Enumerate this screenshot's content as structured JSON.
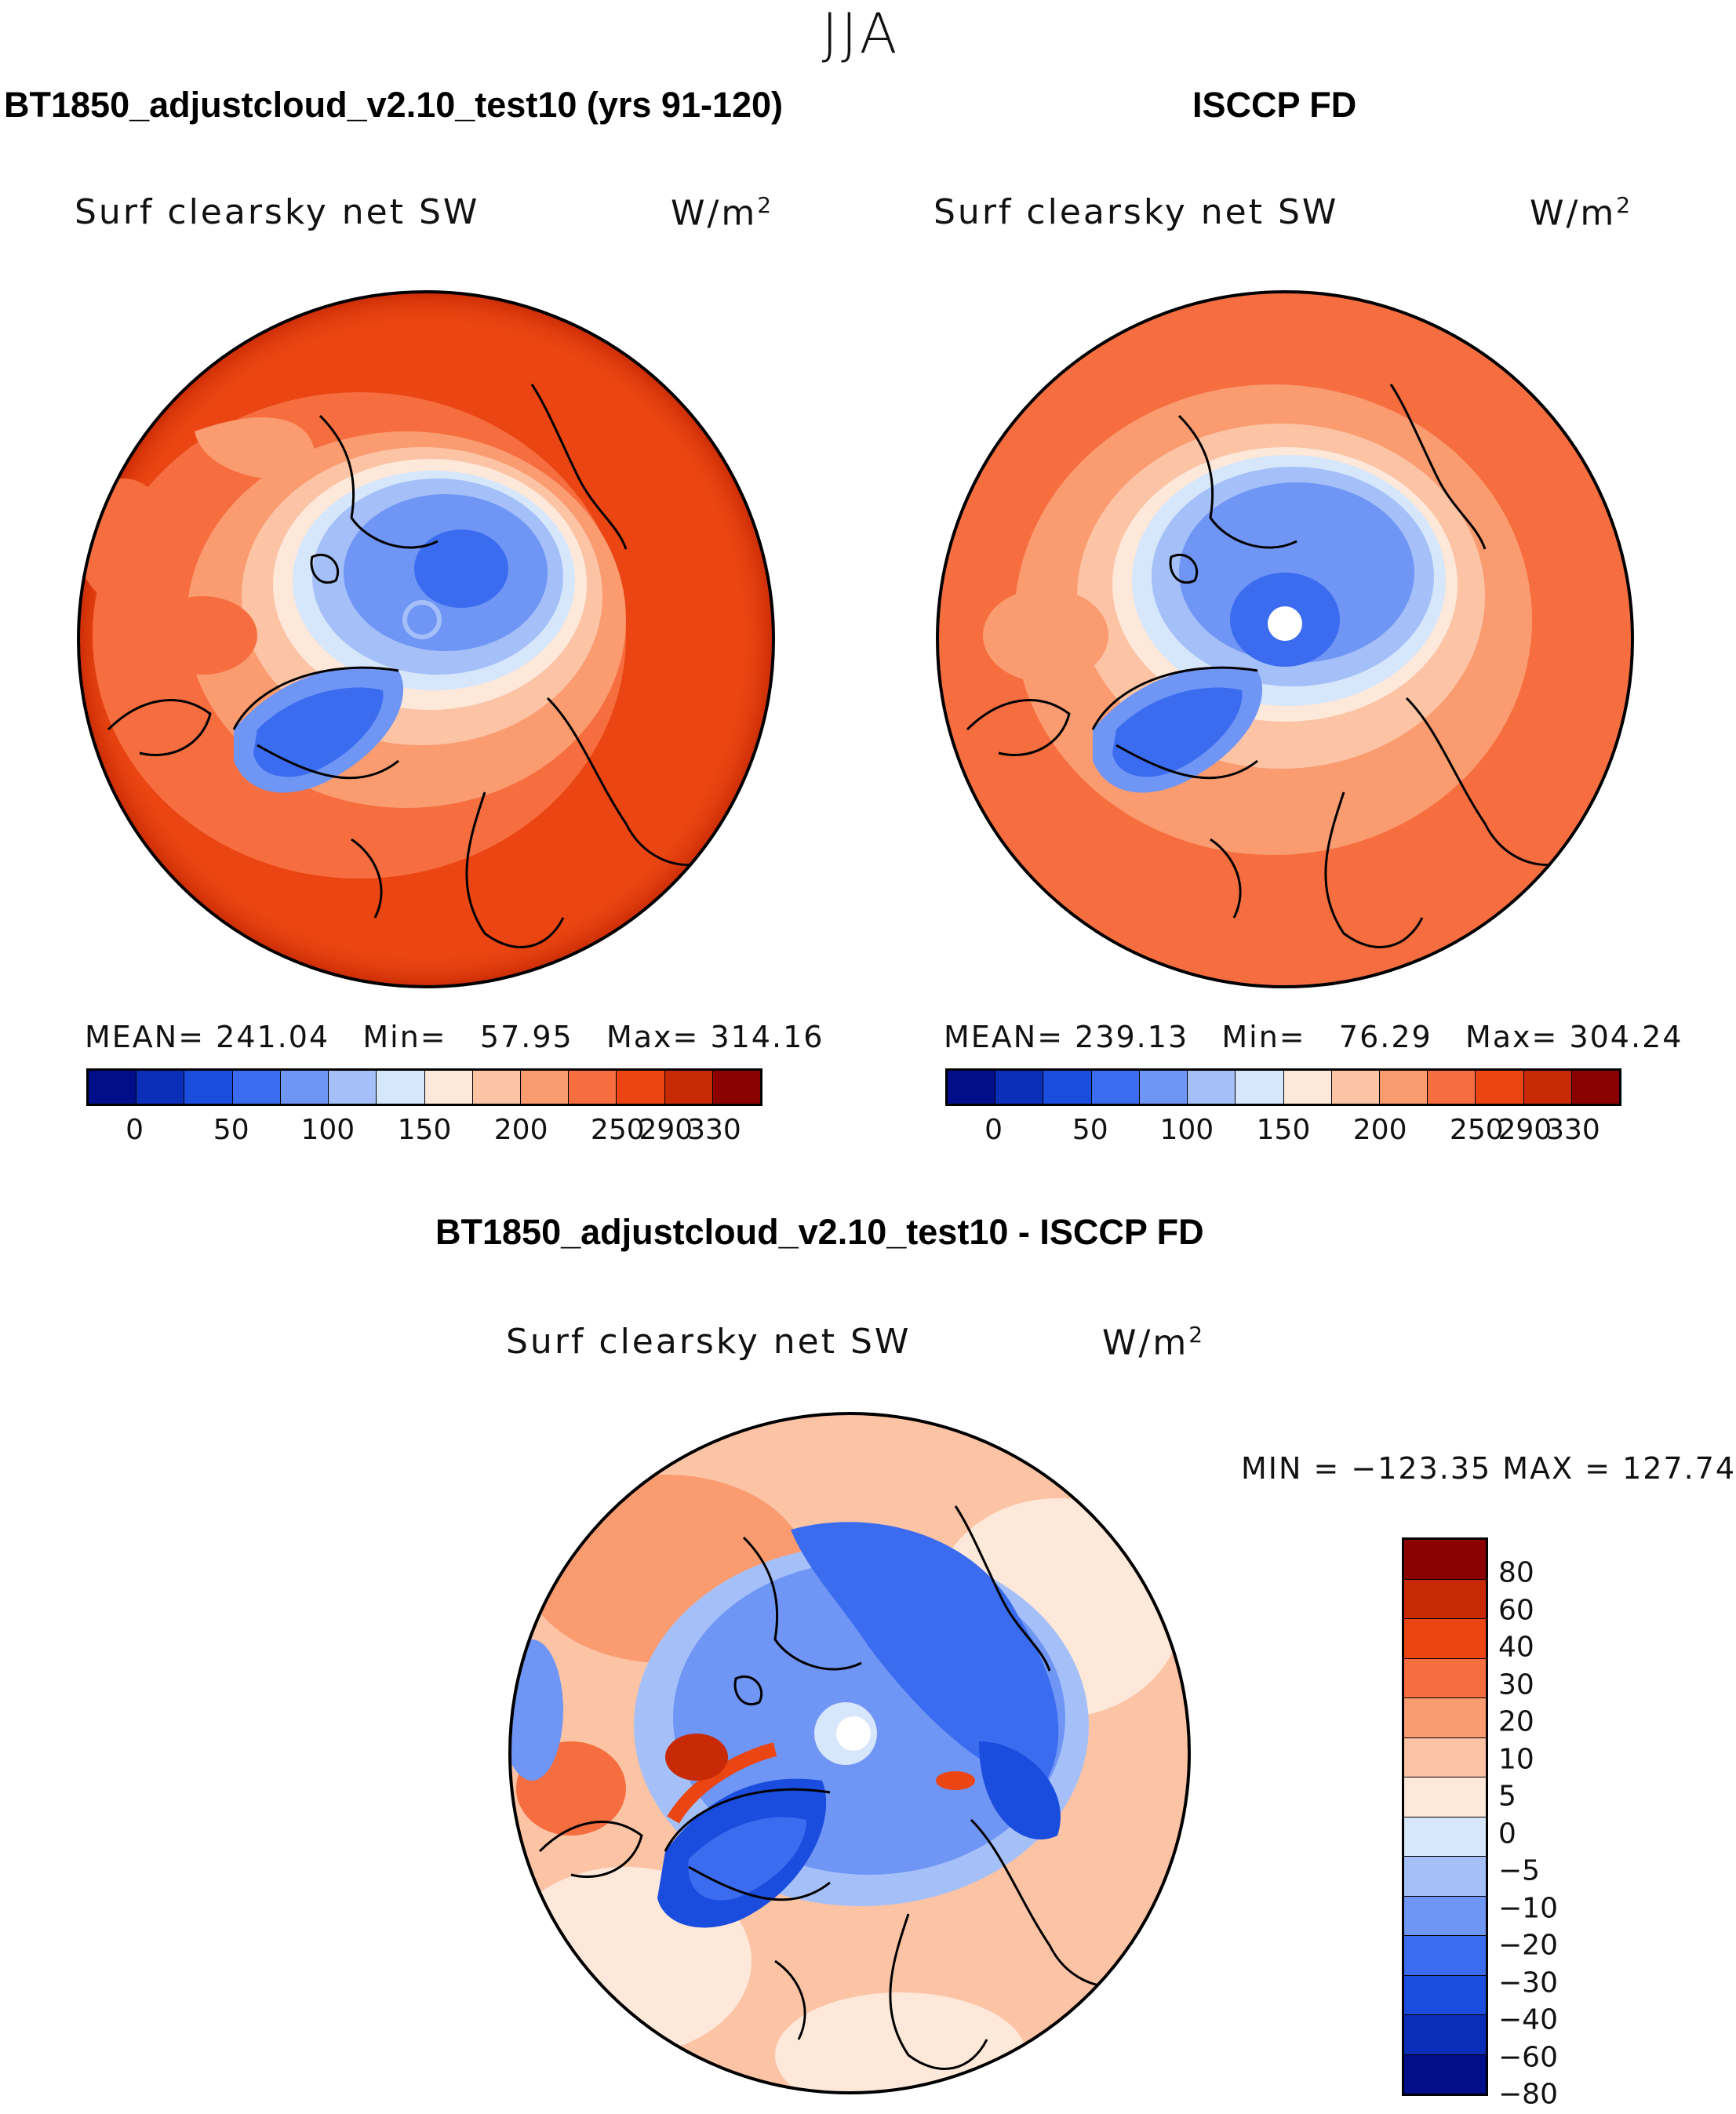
{
  "season": "JJA",
  "chart_data": [
    {
      "type": "heatmap",
      "panel": "model",
      "title": "BT1850_adjustcloud_v2.10_test10 (yrs 91-120)",
      "field": "Surf clearsky net SW",
      "units": "W/m",
      "units_sup": "2",
      "stats": {
        "mean_label": "MEAN=",
        "mean": "241.04",
        "min_label": "Min=",
        "min": "57.95",
        "max_label": "Max=",
        "max": "314.16"
      },
      "colorbar": {
        "colors": [
          "#000e8a",
          "#0a2eb8",
          "#1a4cde",
          "#3b6cf0",
          "#6f95f5",
          "#a5c0f8",
          "#d6e6fb",
          "#fde8da",
          "#fcc3a4",
          "#fa9b70",
          "#f66e3f",
          "#ea4512",
          "#c82a05",
          "#8b0000"
        ],
        "ticks": [
          "0",
          "50",
          "100",
          "150",
          "200",
          "250",
          "290",
          "330"
        ]
      }
    },
    {
      "type": "heatmap",
      "panel": "obs",
      "title": "ISCCP FD",
      "field": "Surf clearsky net SW",
      "units": "W/m",
      "units_sup": "2",
      "stats": {
        "mean_label": "MEAN=",
        "mean": "239.13",
        "min_label": "Min=",
        "min": "76.29",
        "max_label": "Max=",
        "max": "304.24"
      },
      "colorbar": {
        "colors": [
          "#000e8a",
          "#0a2eb8",
          "#1a4cde",
          "#3b6cf0",
          "#6f95f5",
          "#a5c0f8",
          "#d6e6fb",
          "#fde8da",
          "#fcc3a4",
          "#fa9b70",
          "#f66e3f",
          "#ea4512",
          "#c82a05",
          "#8b0000"
        ],
        "ticks": [
          "0",
          "50",
          "100",
          "150",
          "200",
          "250",
          "290",
          "330"
        ]
      }
    },
    {
      "type": "heatmap",
      "panel": "difference",
      "title": "BT1850_adjustcloud_v2.10_test10 - ISCCP FD",
      "field": "Surf clearsky net SW",
      "units": "W/m",
      "units_sup": "2",
      "stats_text": "MIN = −123.35 MAX = 127.74",
      "colorbar": {
        "colors": [
          "#8b0000",
          "#c82a05",
          "#ea4512",
          "#f66e3f",
          "#fa9b70",
          "#fcc3a4",
          "#fde8da",
          "#d6e6fb",
          "#a5c0f8",
          "#6f95f5",
          "#3b6cf0",
          "#1a4cde",
          "#0a2eb8",
          "#000e8a"
        ],
        "ticks": [
          "80",
          "60",
          "40",
          "30",
          "20",
          "10",
          "5",
          "0",
          "−5",
          "−10",
          "−20",
          "−30",
          "−40",
          "−60",
          "−80"
        ]
      }
    }
  ]
}
